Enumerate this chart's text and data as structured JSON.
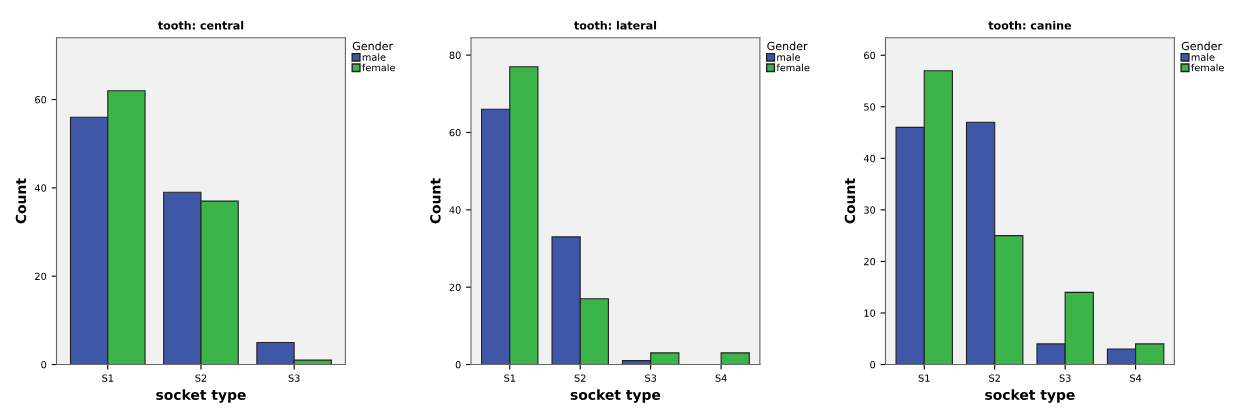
{
  "chart_data": [
    {
      "type": "bar",
      "title": "tooth: central",
      "xlabel": "socket type",
      "ylabel": "Count",
      "legend_title": "Gender",
      "legend": "top right",
      "grid": false,
      "categories": [
        "S1",
        "S2",
        "S3"
      ],
      "ylim": [
        0,
        74
      ],
      "yticks": [
        0,
        20,
        40,
        60
      ],
      "series": [
        {
          "name": "male",
          "color": "#3f57a6",
          "values": [
            56,
            39,
            5
          ]
        },
        {
          "name": "female",
          "color": "#3bb44a",
          "values": [
            62,
            37,
            1
          ]
        }
      ]
    },
    {
      "type": "bar",
      "title": "tooth: lateral",
      "xlabel": "socket type",
      "ylabel": "Count",
      "legend_title": "Gender",
      "legend": "top right",
      "grid": false,
      "categories": [
        "S1",
        "S2",
        "S3",
        "S4"
      ],
      "ylim": [
        0,
        84.5
      ],
      "yticks": [
        0,
        20,
        40,
        60,
        80
      ],
      "series": [
        {
          "name": "male",
          "color": "#3f57a6",
          "values": [
            66,
            33,
            1,
            null
          ]
        },
        {
          "name": "female",
          "color": "#3bb44a",
          "values": [
            77,
            17,
            3,
            3
          ]
        }
      ]
    },
    {
      "type": "bar",
      "title": "tooth: canine",
      "xlabel": "socket type",
      "ylabel": "Count",
      "legend_title": "Gender",
      "legend": "top right",
      "grid": false,
      "categories": [
        "S1",
        "S2",
        "S3",
        "S4"
      ],
      "ylim": [
        0,
        63.4
      ],
      "yticks": [
        0,
        10,
        20,
        30,
        40,
        50,
        60
      ],
      "series": [
        {
          "name": "male",
          "color": "#3f57a6",
          "values": [
            46,
            47,
            4,
            3
          ]
        },
        {
          "name": "female",
          "color": "#3bb44a",
          "values": [
            57,
            25,
            14,
            4
          ]
        }
      ]
    }
  ]
}
